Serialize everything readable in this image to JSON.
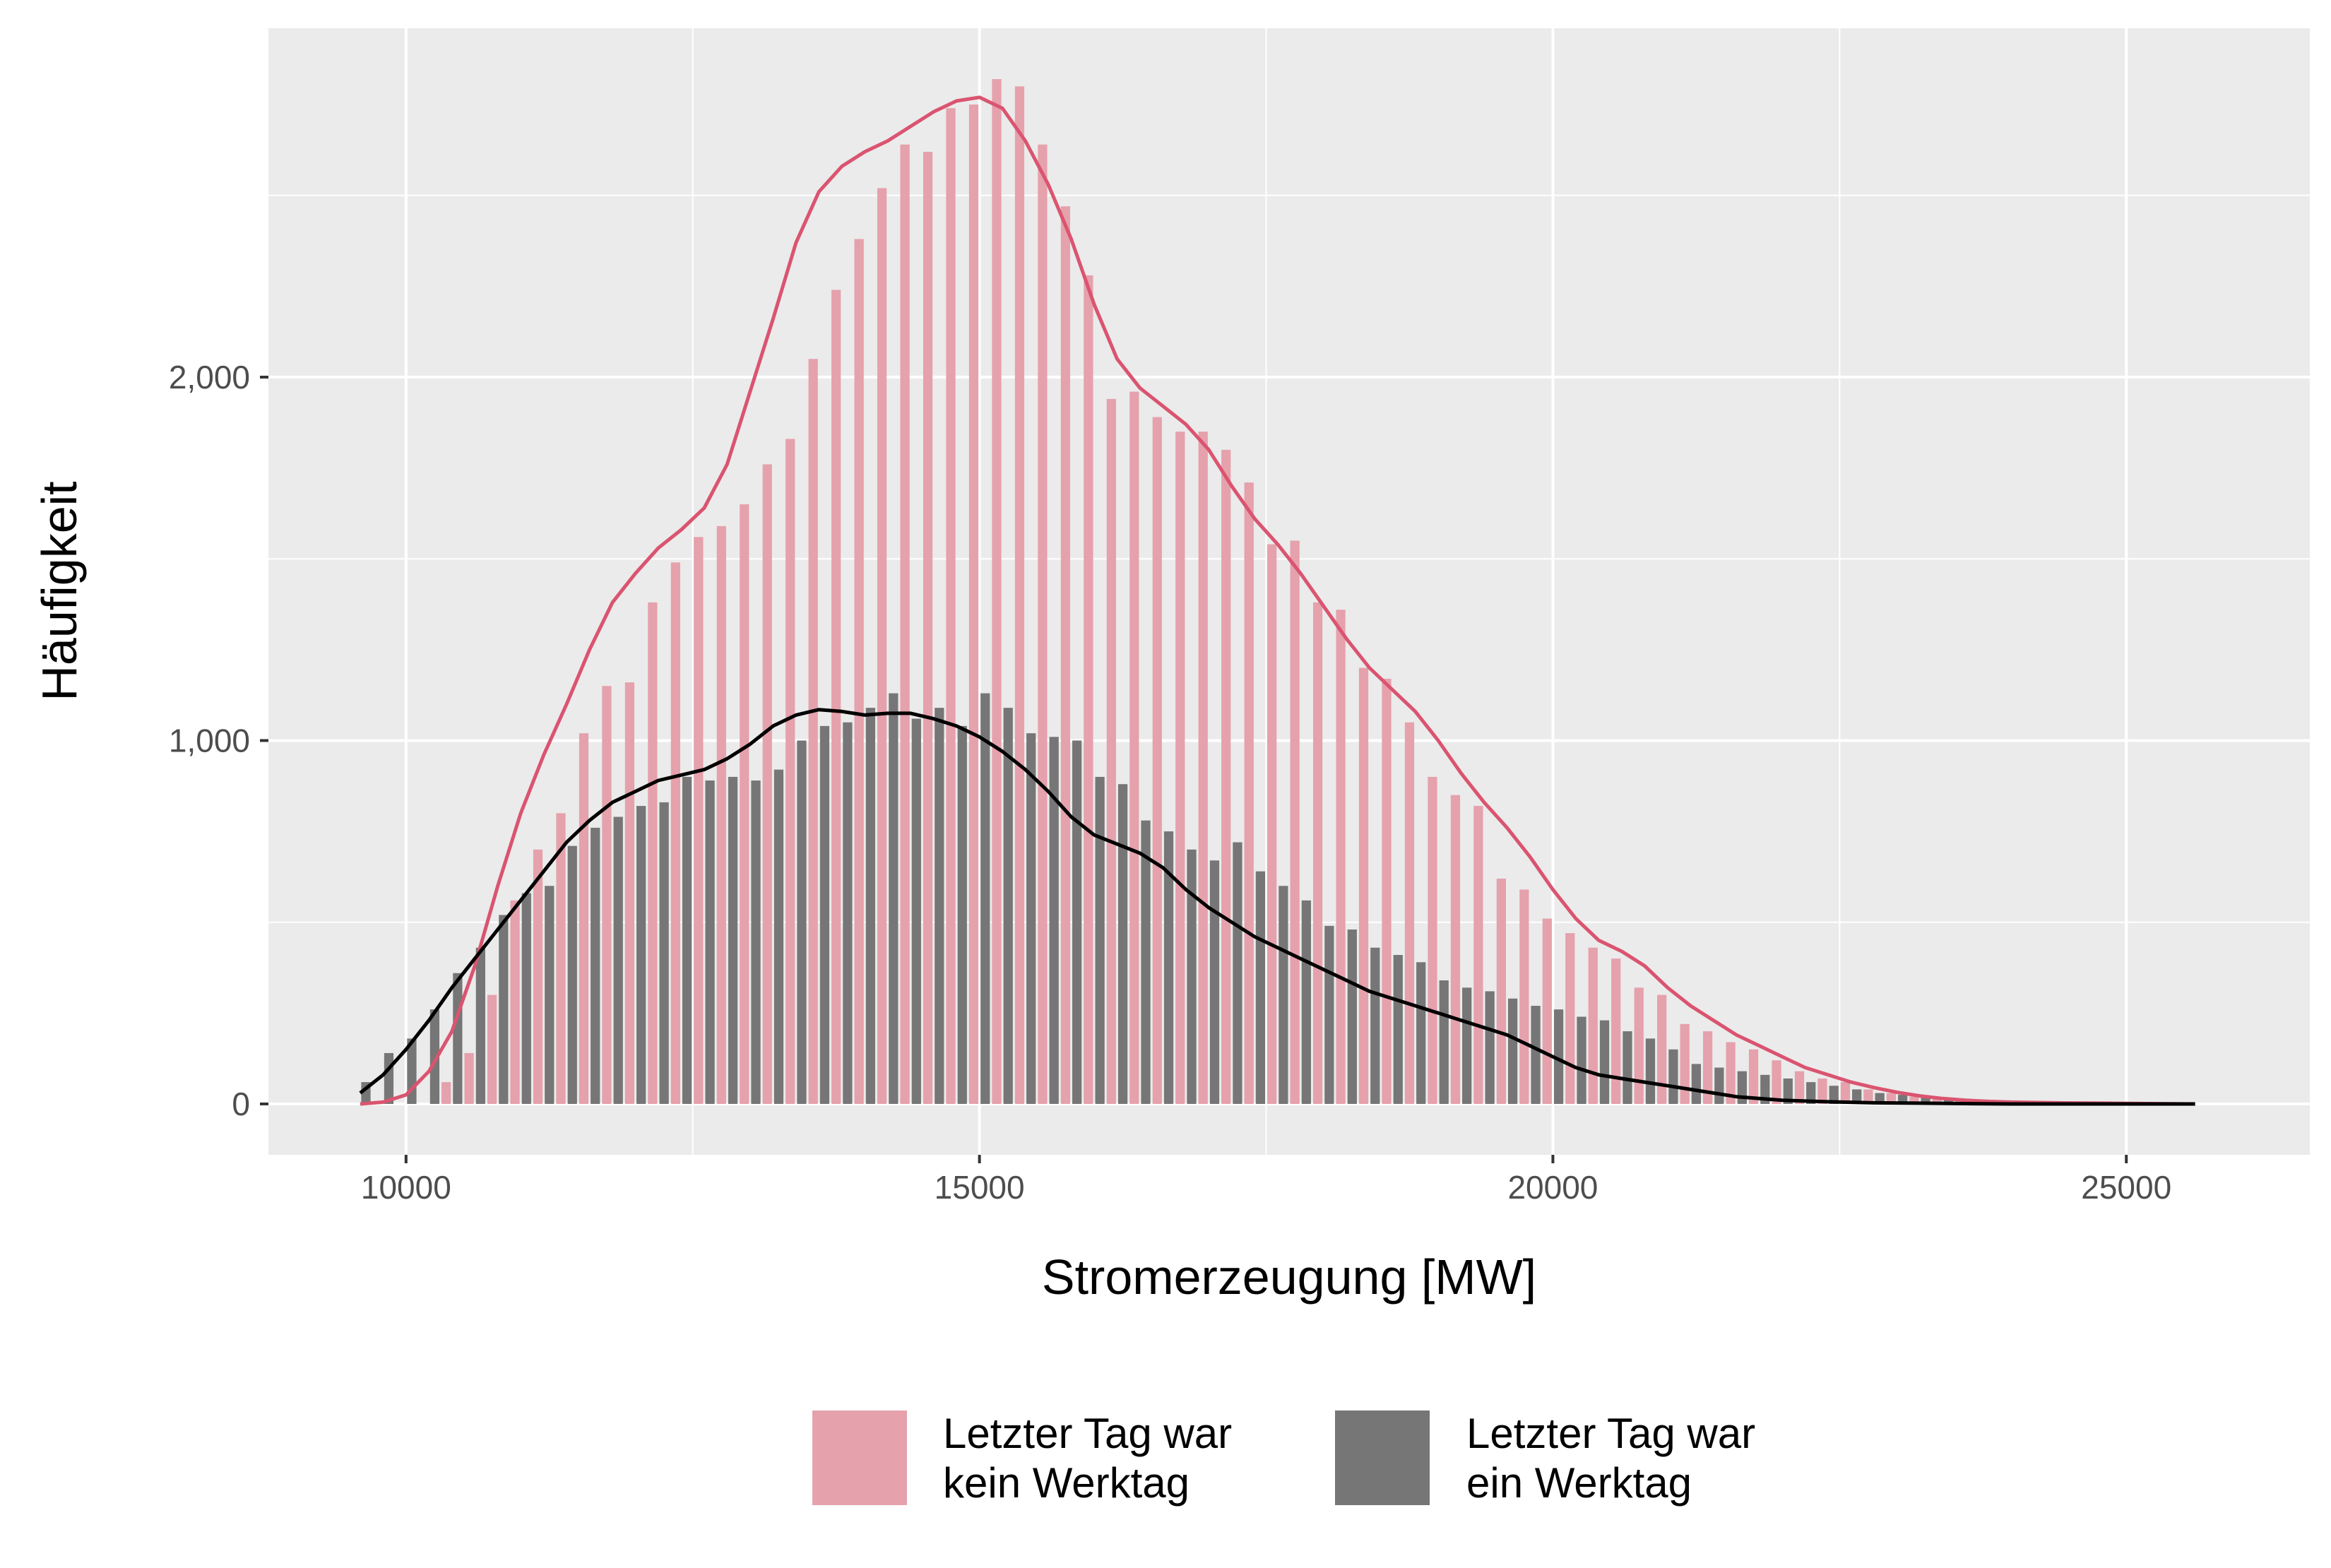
{
  "chart_data": {
    "type": "bar",
    "title": "",
    "xlabel": "Stromerzeugung [MW]",
    "ylabel": "Häufigkeit",
    "xlim": [
      8800,
      26600
    ],
    "ylim": [
      -140,
      2960
    ],
    "x_ticks": [
      10000,
      15000,
      20000,
      25000
    ],
    "x_tick_labels": [
      "10000",
      "15000",
      "20000",
      "25000"
    ],
    "y_ticks": [
      0,
      1000,
      2000
    ],
    "y_tick_labels": [
      "0",
      "1,000",
      "2,000"
    ],
    "grid": true,
    "legend_position": "bottom",
    "bin_width": 200,
    "bin_centers_start": 9700,
    "series": [
      {
        "name": "Letzter Tag war kein Werktag",
        "legend_lines": [
          "Letzter Tag war",
          "kein Werktag"
        ],
        "color": "#E5A1AC",
        "curve_color": "#DA5470",
        "offset": 1,
        "values": [
          0,
          0,
          0,
          60,
          140,
          300,
          560,
          700,
          800,
          1020,
          1150,
          1160,
          1380,
          1490,
          1560,
          1590,
          1650,
          1760,
          1830,
          2050,
          2240,
          2380,
          2520,
          2640,
          2620,
          2740,
          2750,
          2820,
          2800,
          2640,
          2470,
          2280,
          1940,
          1960,
          1890,
          1850,
          1850,
          1800,
          1710,
          1540,
          1550,
          1380,
          1360,
          1200,
          1170,
          1050,
          900,
          850,
          820,
          620,
          590,
          510,
          470,
          430,
          400,
          320,
          300,
          220,
          200,
          170,
          150,
          120,
          90,
          70,
          60,
          40,
          30,
          20,
          15,
          10,
          8,
          5,
          3,
          2,
          1,
          0,
          0,
          0,
          0,
          0,
          0
        ],
        "curve": [
          [
            9600,
            0
          ],
          [
            9800,
            5
          ],
          [
            10000,
            25
          ],
          [
            10200,
            90
          ],
          [
            10400,
            200
          ],
          [
            10600,
            380
          ],
          [
            10800,
            600
          ],
          [
            11000,
            800
          ],
          [
            11200,
            960
          ],
          [
            11400,
            1100
          ],
          [
            11600,
            1250
          ],
          [
            11800,
            1380
          ],
          [
            12000,
            1460
          ],
          [
            12200,
            1530
          ],
          [
            12400,
            1580
          ],
          [
            12600,
            1640
          ],
          [
            12800,
            1760
          ],
          [
            13000,
            1960
          ],
          [
            13200,
            2160
          ],
          [
            13400,
            2370
          ],
          [
            13600,
            2510
          ],
          [
            13800,
            2580
          ],
          [
            14000,
            2620
          ],
          [
            14200,
            2650
          ],
          [
            14400,
            2690
          ],
          [
            14600,
            2730
          ],
          [
            14800,
            2760
          ],
          [
            15000,
            2770
          ],
          [
            15200,
            2740
          ],
          [
            15400,
            2650
          ],
          [
            15600,
            2530
          ],
          [
            15800,
            2380
          ],
          [
            16000,
            2200
          ],
          [
            16200,
            2050
          ],
          [
            16400,
            1970
          ],
          [
            16600,
            1920
          ],
          [
            16800,
            1870
          ],
          [
            17000,
            1800
          ],
          [
            17200,
            1700
          ],
          [
            17400,
            1610
          ],
          [
            17600,
            1540
          ],
          [
            17800,
            1460
          ],
          [
            18000,
            1370
          ],
          [
            18200,
            1280
          ],
          [
            18400,
            1200
          ],
          [
            18600,
            1140
          ],
          [
            18800,
            1080
          ],
          [
            19000,
            1000
          ],
          [
            19200,
            910
          ],
          [
            19400,
            830
          ],
          [
            19600,
            760
          ],
          [
            19800,
            680
          ],
          [
            20000,
            590
          ],
          [
            20200,
            510
          ],
          [
            20400,
            450
          ],
          [
            20600,
            420
          ],
          [
            20800,
            380
          ],
          [
            21000,
            320
          ],
          [
            21200,
            270
          ],
          [
            21400,
            230
          ],
          [
            21600,
            190
          ],
          [
            21800,
            160
          ],
          [
            22000,
            130
          ],
          [
            22200,
            100
          ],
          [
            22400,
            80
          ],
          [
            22600,
            60
          ],
          [
            22800,
            45
          ],
          [
            23000,
            32
          ],
          [
            23200,
            22
          ],
          [
            23400,
            15
          ],
          [
            23600,
            10
          ],
          [
            23800,
            7
          ],
          [
            24000,
            5
          ],
          [
            24400,
            3
          ],
          [
            24800,
            2
          ],
          [
            25200,
            1
          ],
          [
            25600,
            0
          ]
        ]
      },
      {
        "name": "Letzter Tag war ein Werktag",
        "legend_lines": [
          "Letzter Tag war",
          "ein Werktag"
        ],
        "color": "#767676",
        "curve_color": "#000000",
        "offset": 0,
        "values": [
          60,
          140,
          180,
          260,
          360,
          430,
          520,
          580,
          600,
          710,
          760,
          790,
          820,
          830,
          900,
          890,
          900,
          890,
          920,
          1000,
          1040,
          1050,
          1090,
          1130,
          1060,
          1090,
          1040,
          1130,
          1090,
          1020,
          1010,
          1000,
          900,
          880,
          780,
          750,
          700,
          670,
          720,
          640,
          600,
          560,
          490,
          480,
          430,
          410,
          390,
          340,
          320,
          310,
          290,
          270,
          260,
          240,
          230,
          200,
          180,
          150,
          110,
          100,
          90,
          80,
          70,
          60,
          50,
          40,
          30,
          25,
          20,
          15,
          10,
          8,
          6,
          4,
          3,
          2,
          1,
          0,
          0,
          0,
          0
        ],
        "curve": [
          [
            9600,
            30
          ],
          [
            9800,
            80
          ],
          [
            10000,
            150
          ],
          [
            10200,
            230
          ],
          [
            10400,
            320
          ],
          [
            10600,
            400
          ],
          [
            10800,
            480
          ],
          [
            11000,
            560
          ],
          [
            11200,
            640
          ],
          [
            11400,
            720
          ],
          [
            11600,
            780
          ],
          [
            11800,
            830
          ],
          [
            12000,
            860
          ],
          [
            12200,
            890
          ],
          [
            12400,
            905
          ],
          [
            12600,
            920
          ],
          [
            12800,
            950
          ],
          [
            13000,
            990
          ],
          [
            13200,
            1040
          ],
          [
            13400,
            1070
          ],
          [
            13600,
            1085
          ],
          [
            13800,
            1080
          ],
          [
            14000,
            1070
          ],
          [
            14200,
            1075
          ],
          [
            14400,
            1075
          ],
          [
            14600,
            1060
          ],
          [
            14800,
            1040
          ],
          [
            15000,
            1010
          ],
          [
            15200,
            970
          ],
          [
            15400,
            920
          ],
          [
            15600,
            860
          ],
          [
            15800,
            790
          ],
          [
            16000,
            740
          ],
          [
            16200,
            715
          ],
          [
            16400,
            690
          ],
          [
            16600,
            650
          ],
          [
            16800,
            590
          ],
          [
            17000,
            540
          ],
          [
            17200,
            500
          ],
          [
            17400,
            460
          ],
          [
            17600,
            430
          ],
          [
            17800,
            400
          ],
          [
            18000,
            370
          ],
          [
            18200,
            340
          ],
          [
            18400,
            310
          ],
          [
            18600,
            290
          ],
          [
            18800,
            270
          ],
          [
            19000,
            250
          ],
          [
            19200,
            230
          ],
          [
            19400,
            210
          ],
          [
            19600,
            190
          ],
          [
            19800,
            160
          ],
          [
            20000,
            130
          ],
          [
            20200,
            100
          ],
          [
            20400,
            80
          ],
          [
            20600,
            70
          ],
          [
            20800,
            60
          ],
          [
            21000,
            50
          ],
          [
            21200,
            40
          ],
          [
            21400,
            30
          ],
          [
            21600,
            20
          ],
          [
            21800,
            15
          ],
          [
            22000,
            10
          ],
          [
            22400,
            6
          ],
          [
            22800,
            3
          ],
          [
            23200,
            2
          ],
          [
            23600,
            1
          ],
          [
            24000,
            0
          ],
          [
            25600,
            0
          ]
        ]
      }
    ]
  }
}
